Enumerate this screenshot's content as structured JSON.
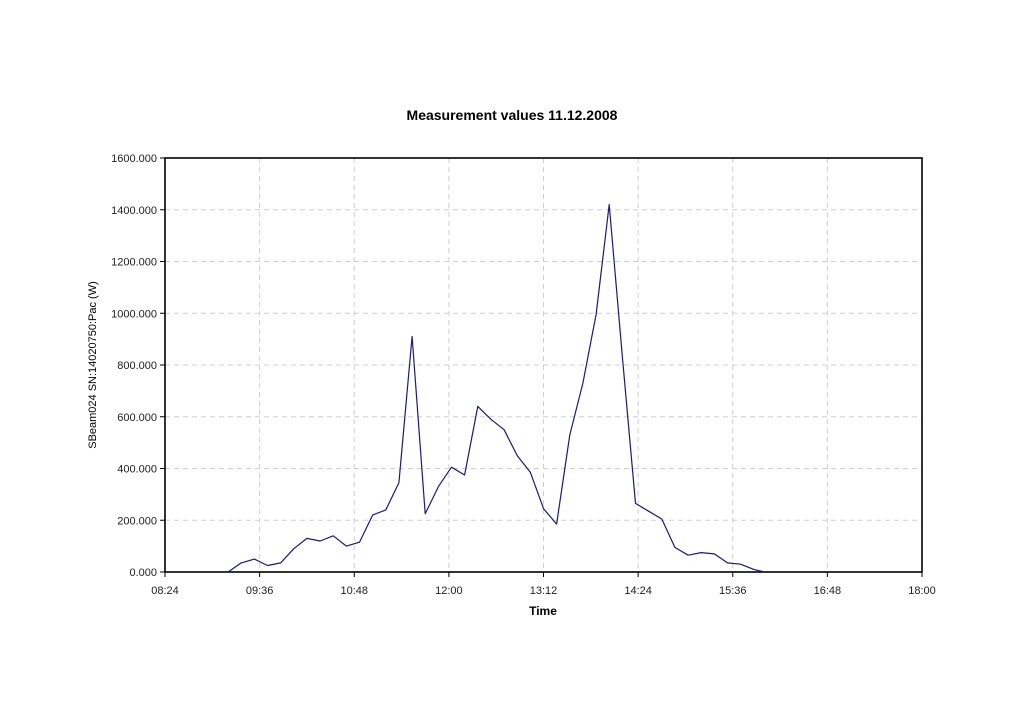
{
  "chart_data": {
    "type": "line",
    "title": "Measurement values 11.12.2008",
    "xlabel": "Time",
    "ylabel": "SBeam024 SN:14020750:Pac (W)",
    "x_ticks": [
      "08:24",
      "09:36",
      "10:48",
      "12:00",
      "13:12",
      "14:24",
      "15:36",
      "16:48",
      "18:00"
    ],
    "y_ticks": [
      "0.000",
      "200.000",
      "400.000",
      "600.000",
      "800.000",
      "1000.000",
      "1200.000",
      "1400.000",
      "1600.000"
    ],
    "xlim": [
      "08:24",
      "18:00"
    ],
    "ylim": [
      0,
      1600
    ],
    "grid": true,
    "line_color": "#1a1a7a",
    "series": [
      {
        "x": [
          "09:12",
          "09:22",
          "09:32",
          "09:42",
          "09:52",
          "10:02",
          "10:12",
          "10:22",
          "10:32",
          "10:42",
          "10:52",
          "11:02",
          "11:12",
          "11:22",
          "11:32",
          "11:42",
          "11:52",
          "12:02",
          "12:12",
          "12:22",
          "12:32",
          "12:42",
          "12:52",
          "13:02",
          "13:12",
          "13:22",
          "13:32",
          "13:42",
          "13:52",
          "14:02",
          "14:12",
          "14:22",
          "14:32",
          "14:42",
          "14:52",
          "15:02",
          "15:12",
          "15:22",
          "15:32",
          "15:42",
          "15:52",
          "16:00"
        ],
        "values": [
          0,
          35,
          50,
          25,
          35,
          90,
          130,
          120,
          140,
          100,
          115,
          220,
          240,
          345,
          910,
          225,
          330,
          405,
          375,
          640,
          590,
          550,
          450,
          385,
          245,
          185,
          530,
          730,
          995,
          1420,
          830,
          265,
          235,
          205,
          95,
          65,
          75,
          70,
          35,
          30,
          10,
          0
        ]
      }
    ]
  }
}
